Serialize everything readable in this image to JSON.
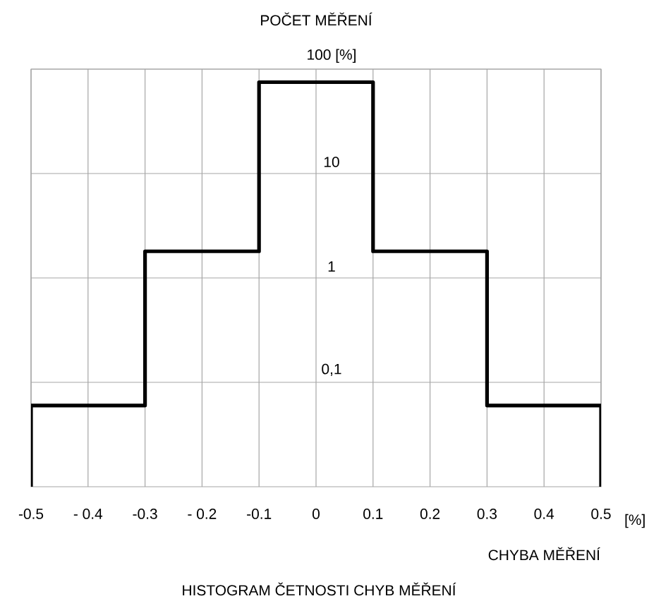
{
  "chart_data": {
    "type": "histogram",
    "title": "HISTOGRAM ČETNOSTI CHYB MĚŘENÍ",
    "xlabel": "CHYBA MĚŘENÍ",
    "ylabel": "POČET MĚŘENÍ",
    "annotations": [
      "[%]"
    ],
    "bins": [
      -0.5,
      -0.3,
      -0.1,
      0.1,
      0.3,
      0.5
    ],
    "values": [
      0.06,
      1.8,
      75,
      1.8,
      0.06
    ],
    "color": "#000000",
    "log": true,
    "grid": true,
    "xlim": [
      -0.5,
      0.5
    ],
    "ylim": [
      0.01,
      100
    ],
    "xticks": [
      {
        "value": -0.5,
        "label": "-0.5"
      },
      {
        "value": -0.4,
        "label": "- 0.4"
      },
      {
        "value": -0.3,
        "label": "-0.3"
      },
      {
        "value": -0.2,
        "label": "- 0.2"
      },
      {
        "value": -0.1,
        "label": "-0.1"
      },
      0,
      0.1,
      0.2,
      0.3,
      0.4,
      0.5
    ],
    "yticks": [
      {
        "value": 0.1,
        "label": "0,1"
      },
      1,
      10,
      {
        "value": 100,
        "label": "100 [%]"
      }
    ]
  }
}
